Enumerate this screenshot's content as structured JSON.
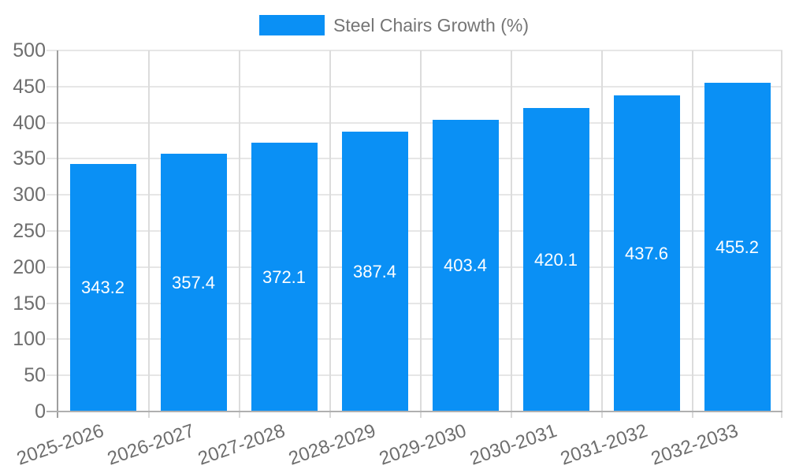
{
  "legend": {
    "label": "Steel Chairs Growth (%)"
  },
  "chart_data": {
    "type": "bar",
    "title": "Steel Chairs Growth (%)",
    "categories": [
      "2025-2026",
      "2026-2027",
      "2027-2028",
      "2028-2029",
      "2029-2030",
      "2030-2031",
      "2031-2032",
      "2032-2033"
    ],
    "values": [
      343.2,
      357.4,
      372.1,
      387.4,
      403.4,
      420.1,
      437.6,
      455.2
    ],
    "value_labels": [
      "343.2",
      "357.4",
      "372.1",
      "387.4",
      "403.4",
      "420.1",
      "437.6",
      "455.2"
    ],
    "xlabel": "",
    "ylabel": "",
    "ylim": [
      0,
      500
    ],
    "ytick_step": 50,
    "ytick_labels": [
      "0",
      "50",
      "100",
      "150",
      "200",
      "250",
      "300",
      "350",
      "400",
      "450",
      "500"
    ],
    "grid": true,
    "legend_position": "top",
    "colors": {
      "bar": "#0a90f5",
      "value_label": "#ffffff",
      "axis_text": "#6e6e6e",
      "legend_text": "#757575",
      "gridline": "#e6e6e6",
      "vgridline": "#dcdcdc",
      "y_axis_line": "#9e9e9e",
      "x_axis_line": "#b0b0b0"
    }
  }
}
